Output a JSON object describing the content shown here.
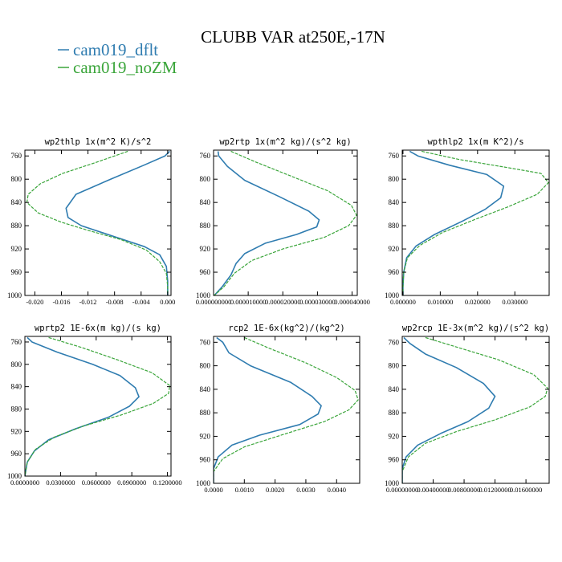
{
  "title": "CLUBB VAR at250E,-17N",
  "legend": [
    {
      "name": "cam019_dflt",
      "color": "#2f7cb0"
    },
    {
      "name": "cam019_noZM",
      "color": "#3aa53a"
    }
  ],
  "chart_data": [
    {
      "type": "line",
      "title": "wp2thlp  1x(m^2 K)/s^2",
      "ylim": [
        1000,
        750
      ],
      "yticks": [
        760,
        800,
        840,
        880,
        920,
        960,
        1000
      ],
      "xlim": [
        -0.0215,
        0.0005
      ],
      "xticks": [
        -0.02,
        -0.016,
        -0.012,
        -0.008,
        -0.004,
        0.0
      ],
      "xtick_labels": [
        "-0.020",
        "-0.016",
        "-0.012",
        "-0.008",
        "-0.004",
        "0.000"
      ],
      "series": [
        {
          "name": "cam019_dflt",
          "points": [
            [
              0.0003,
              752
            ],
            [
              -0.0004,
              760
            ],
            [
              -0.0036,
              776
            ],
            [
              -0.0086,
              800
            ],
            [
              -0.0138,
              826
            ],
            [
              -0.0153,
              850
            ],
            [
              -0.015,
              866
            ],
            [
              -0.013,
              880
            ],
            [
              -0.0072,
              902
            ],
            [
              -0.0035,
              916
            ],
            [
              -0.0012,
              930
            ],
            [
              -0.0002,
              950
            ],
            [
              0.0,
              975
            ],
            [
              0.0,
              1000
            ]
          ]
        },
        {
          "name": "cam019_noZM",
          "points": [
            [
              -0.006,
              752
            ],
            [
              -0.0105,
              770
            ],
            [
              -0.0158,
              790
            ],
            [
              -0.0192,
              808
            ],
            [
              -0.021,
              826
            ],
            [
              -0.0212,
              840
            ],
            [
              -0.0195,
              858
            ],
            [
              -0.016,
              874
            ],
            [
              -0.012,
              888
            ],
            [
              -0.007,
              904
            ],
            [
              -0.0032,
              922
            ],
            [
              -0.0012,
              942
            ],
            [
              -0.0002,
              962
            ],
            [
              0.0,
              985
            ],
            [
              0.0,
              1000
            ]
          ]
        }
      ]
    },
    {
      "type": "line",
      "title": "wp2rtp  1x(m^2 kg)/(s^2 kg)",
      "ylim": [
        1000,
        750
      ],
      "yticks": [
        760,
        800,
        840,
        880,
        920,
        960,
        1000
      ],
      "xlim": [
        0.0,
        4.15e-05
      ],
      "xticks": [
        0.0,
        1e-05,
        2e-05,
        3e-05,
        4e-05
      ],
      "xtick_labels": [
        "0.000000000",
        "0.000010000",
        "0.000020000",
        "0.000030000",
        "0.000040000"
      ],
      "series": [
        {
          "name": "cam019_dflt",
          "points": [
            [
              1.3e-06,
              752
            ],
            [
              1.5e-06,
              760
            ],
            [
              4e-06,
              778
            ],
            [
              9e-06,
              802
            ],
            [
              1.9e-05,
              830
            ],
            [
              2.75e-05,
              855
            ],
            [
              3.05e-05,
              870
            ],
            [
              2.98e-05,
              882
            ],
            [
              2.4e-05,
              895
            ],
            [
              1.5e-05,
              910
            ],
            [
              9e-06,
              928
            ],
            [
              6.5e-06,
              945
            ],
            [
              5e-06,
              965
            ],
            [
              2.5e-06,
              985
            ],
            [
              2e-07,
              1000
            ]
          ]
        },
        {
          "name": "cam019_noZM",
          "points": [
            [
              5e-06,
              752
            ],
            [
              1.2e-05,
              770
            ],
            [
              2.25e-05,
              795
            ],
            [
              3.3e-05,
              820
            ],
            [
              3.98e-05,
              845
            ],
            [
              4.13e-05,
              862
            ],
            [
              3.9e-05,
              880
            ],
            [
              3.2e-05,
              900
            ],
            [
              2e-05,
              920
            ],
            [
              1.1e-05,
              940
            ],
            [
              6e-06,
              962
            ],
            [
              3e-06,
              985
            ],
            [
              2e-07,
              1000
            ]
          ]
        }
      ]
    },
    {
      "type": "line",
      "title": "wpthlp2  1x(m K^2)/s",
      "ylim": [
        1000,
        750
      ],
      "yticks": [
        760,
        800,
        840,
        880,
        920,
        960,
        1000
      ],
      "xlim": [
        -0.0002,
        0.0392
      ],
      "xticks": [
        0.0,
        0.01,
        0.02,
        0.03
      ],
      "xtick_labels": [
        "0.000000",
        "0.010000",
        "0.020000",
        "0.030000"
      ],
      "series": [
        {
          "name": "cam019_dflt",
          "points": [
            [
              0.0018,
              752
            ],
            [
              0.004,
              760
            ],
            [
              0.0125,
              776
            ],
            [
              0.0225,
              792
            ],
            [
              0.027,
              812
            ],
            [
              0.0262,
              832
            ],
            [
              0.022,
              852
            ],
            [
              0.016,
              872
            ],
            [
              0.0085,
              895
            ],
            [
              0.0035,
              915
            ],
            [
              0.001,
              935
            ],
            [
              0.0002,
              960
            ],
            [
              0.0,
              985
            ],
            [
              0.0,
              1000
            ]
          ]
        },
        {
          "name": "cam019_noZM",
          "points": [
            [
              0.005,
              752
            ],
            [
              0.015,
              766
            ],
            [
              0.028,
              780
            ],
            [
              0.037,
              790
            ],
            [
              0.039,
              806
            ],
            [
              0.036,
              826
            ],
            [
              0.028,
              848
            ],
            [
              0.019,
              870
            ],
            [
              0.0105,
              892
            ],
            [
              0.0045,
              914
            ],
            [
              0.0012,
              935
            ],
            [
              0.0002,
              960
            ],
            [
              0.0,
              985
            ],
            [
              0.0,
              1000
            ]
          ]
        }
      ]
    },
    {
      "type": "line",
      "title": "wprtp2  1E-6x(m kg)/(s kg)",
      "ylim": [
        1000,
        750
      ],
      "yticks": [
        760,
        800,
        840,
        880,
        920,
        960,
        1000
      ],
      "xlim": [
        0.0,
        0.123
      ],
      "xticks": [
        0.0,
        0.03,
        0.06,
        0.09,
        0.12
      ],
      "xtick_labels": [
        "0.0000000",
        "0.0300000",
        "0.0600000",
        "0.0900000",
        "0.1200000"
      ],
      "series": [
        {
          "name": "cam019_dflt",
          "points": [
            [
              0.002,
              752
            ],
            [
              0.006,
              760
            ],
            [
              0.027,
              778
            ],
            [
              0.057,
              800
            ],
            [
              0.08,
              820
            ],
            [
              0.093,
              842
            ],
            [
              0.096,
              858
            ],
            [
              0.088,
              875
            ],
            [
              0.07,
              895
            ],
            [
              0.043,
              915
            ],
            [
              0.02,
              935
            ],
            [
              0.008,
              955
            ],
            [
              0.002,
              975
            ],
            [
              0.0,
              1000
            ]
          ]
        },
        {
          "name": "cam019_noZM",
          "points": [
            [
              0.02,
              752
            ],
            [
              0.048,
              770
            ],
            [
              0.078,
              792
            ],
            [
              0.107,
              815
            ],
            [
              0.122,
              838
            ],
            [
              0.121,
              852
            ],
            [
              0.108,
              870
            ],
            [
              0.082,
              890
            ],
            [
              0.05,
              910
            ],
            [
              0.025,
              930
            ],
            [
              0.009,
              952
            ],
            [
              0.002,
              975
            ],
            [
              0.0,
              1000
            ]
          ]
        }
      ]
    },
    {
      "type": "line",
      "title": "rcp2  1E-6x(kg^2)/(kg^2)",
      "ylim": [
        1000,
        750
      ],
      "yticks": [
        760,
        800,
        840,
        880,
        920,
        960,
        1000
      ],
      "xlim": [
        0.0,
        0.00475
      ],
      "xticks": [
        0.0,
        0.001,
        0.002,
        0.003,
        0.004
      ],
      "xtick_labels": [
        "0.0000",
        "0.0010",
        "0.0020",
        "0.0030",
        "0.0040"
      ],
      "series": [
        {
          "name": "cam019_dflt",
          "points": [
            [
              0.0001,
              752
            ],
            [
              0.0003,
              760
            ],
            [
              0.0005,
              778
            ],
            [
              0.0012,
              800
            ],
            [
              0.0025,
              828
            ],
            [
              0.0032,
              852
            ],
            [
              0.0035,
              868
            ],
            [
              0.0034,
              882
            ],
            [
              0.0028,
              900
            ],
            [
              0.0015,
              918
            ],
            [
              0.0006,
              935
            ],
            [
              0.00015,
              955
            ],
            [
              0.0,
              975
            ],
            [
              0.0,
              1000
            ]
          ]
        },
        {
          "name": "cam019_noZM",
          "points": [
            [
              0.001,
              752
            ],
            [
              0.0018,
              770
            ],
            [
              0.003,
              795
            ],
            [
              0.004,
              820
            ],
            [
              0.0046,
              842
            ],
            [
              0.0047,
              858
            ],
            [
              0.0044,
              875
            ],
            [
              0.0036,
              895
            ],
            [
              0.0022,
              918
            ],
            [
              0.001,
              938
            ],
            [
              0.0003,
              958
            ],
            [
              0.0,
              980
            ],
            [
              0.0,
              1000
            ]
          ]
        }
      ]
    },
    {
      "type": "line",
      "title": "wp2rcp  1E-3x(m^2 kg)/(s^2 kg)",
      "ylim": [
        1000,
        750
      ],
      "yticks": [
        760,
        800,
        840,
        880,
        920,
        960,
        1000
      ],
      "xlim": [
        0.0,
        0.019
      ],
      "xticks": [
        0.0,
        0.004,
        0.008,
        0.012,
        0.016
      ],
      "xtick_labels": [
        "0.00000000",
        "0.00400000",
        "0.00800000",
        "0.01200000",
        "0.01600000"
      ],
      "series": [
        {
          "name": "cam019_dflt",
          "points": [
            [
              0.0002,
              752
            ],
            [
              0.001,
              762
            ],
            [
              0.003,
              780
            ],
            [
              0.007,
              803
            ],
            [
              0.0105,
              830
            ],
            [
              0.012,
              852
            ],
            [
              0.0112,
              872
            ],
            [
              0.0085,
              895
            ],
            [
              0.005,
              915
            ],
            [
              0.002,
              935
            ],
            [
              0.0005,
              955
            ],
            [
              0.0,
              975
            ],
            [
              0.0,
              1000
            ]
          ]
        },
        {
          "name": "cam019_noZM",
          "points": [
            [
              0.003,
              752
            ],
            [
              0.007,
              768
            ],
            [
              0.0125,
              790
            ],
            [
              0.017,
              815
            ],
            [
              0.0188,
              838
            ],
            [
              0.0185,
              852
            ],
            [
              0.0165,
              870
            ],
            [
              0.012,
              892
            ],
            [
              0.007,
              912
            ],
            [
              0.003,
              932
            ],
            [
              0.0008,
              955
            ],
            [
              0.0,
              980
            ],
            [
              0.0,
              1000
            ]
          ]
        }
      ]
    }
  ]
}
